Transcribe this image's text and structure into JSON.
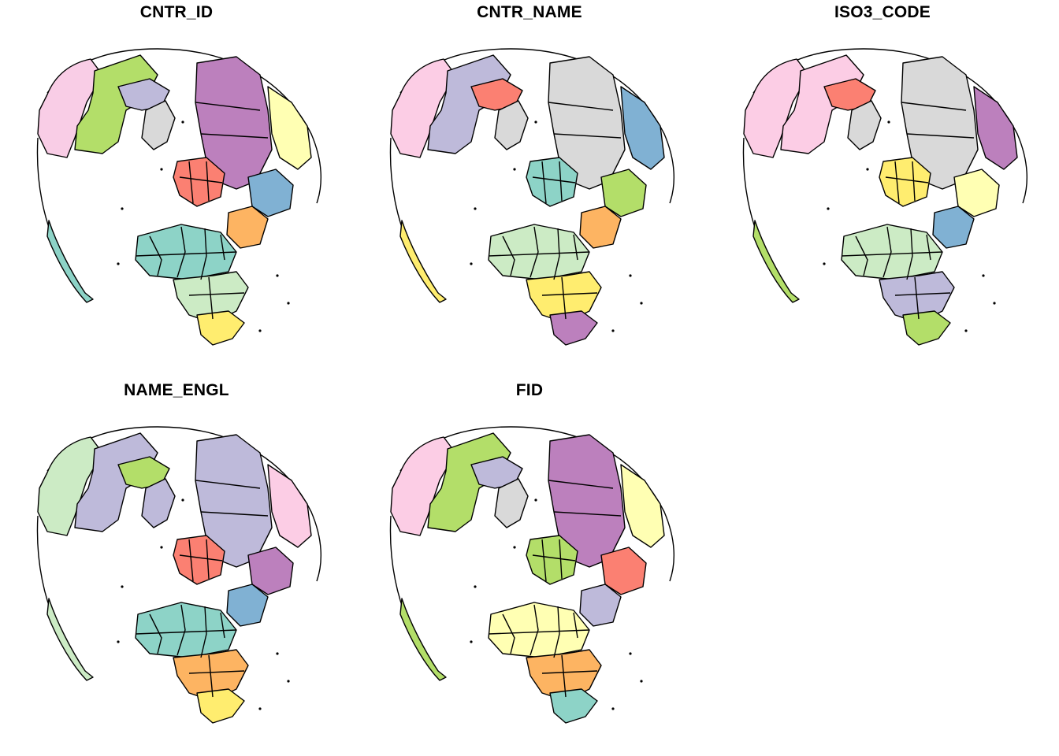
{
  "panels": [
    {
      "title": "CNTR_ID",
      "colors": [
        "#f9cde6",
        "#b3de69",
        "#bebada",
        "#d9d9d9",
        "#bc80bd",
        "#ffffb3",
        "#80b1d3",
        "#fdb462",
        "#fb8072",
        "#8dd3c7",
        "#ccebc5",
        "#ffed6f"
      ]
    },
    {
      "title": "CNTR_NAME",
      "colors": [
        "#fccde5",
        "#bebada",
        "#fb8072",
        "#d9d9d9",
        "#d9d9d9",
        "#80b1d3",
        "#b3de69",
        "#fdb462",
        "#8dd3c7",
        "#ccebc5",
        "#ffed6f",
        "#bc80bd"
      ]
    },
    {
      "title": "ISO3_CODE",
      "colors": [
        "#fccde5",
        "#fccde5",
        "#fb8072",
        "#d9d9d9",
        "#d9d9d9",
        "#bc80bd",
        "#ffffb3",
        "#80b1d3",
        "#ffed6f",
        "#ccebc5",
        "#bebada",
        "#b3de69"
      ]
    },
    {
      "title": "NAME_ENGL",
      "colors": [
        "#ccebc5",
        "#bebada",
        "#b3de69",
        "#bebada",
        "#bebada",
        "#fccde5",
        "#bc80bd",
        "#80b1d3",
        "#fb8072",
        "#8dd3c7",
        "#fdb462",
        "#ffed6f"
      ]
    },
    {
      "title": "FID",
      "colors": [
        "#fccde5",
        "#b3de69",
        "#bebada",
        "#d9d9d9",
        "#bc80bd",
        "#ffffb3",
        "#fb8072",
        "#bebada",
        "#b3de69",
        "#ffffb3",
        "#fdb462",
        "#8dd3c7"
      ]
    }
  ]
}
